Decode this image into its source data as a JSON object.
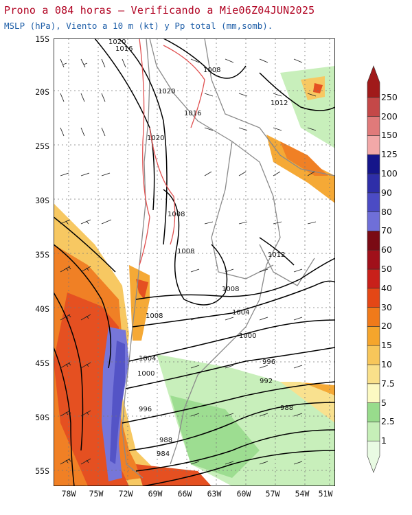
{
  "header": {
    "title": "Prono a 084 horas — Verificando a Mie06Z04JUN2025",
    "subtitle": "MSLP (hPa), Viento a 10 m (kt) y Pp total (mm,somb)."
  },
  "axes": {
    "lat_labels": [
      "15S",
      "20S",
      "25S",
      "30S",
      "35S",
      "40S",
      "45S",
      "50S",
      "55S"
    ],
    "lon_labels": [
      "78W",
      "75W",
      "72W",
      "69W",
      "66W",
      "63W",
      "60W",
      "57W",
      "54W",
      "51W"
    ]
  },
  "isobars": {
    "labels": [
      "1020",
      "1016",
      "1008",
      "1020",
      "1016",
      "1012",
      "1020",
      "1008",
      "1008",
      "1012",
      "1008",
      "1004",
      "1000",
      "996",
      "992",
      "988",
      "988",
      "984",
      "1008",
      "1004",
      "1000",
      "996"
    ]
  },
  "colorbar": {
    "levels": [
      "1",
      "2.5",
      "5",
      "7.5",
      "10",
      "15",
      "20",
      "30",
      "40",
      "50",
      "60",
      "70",
      "80",
      "90",
      "100",
      "125",
      "150",
      "200",
      "250"
    ],
    "colors": [
      "#e9fbe3",
      "#c6efb8",
      "#98dc8c",
      "#fcf9c2",
      "#f9e08a",
      "#f7c65a",
      "#f5a52c",
      "#f07a1a",
      "#e44716",
      "#c8201a",
      "#a0101a",
      "#7a0a14",
      "#6f6fd8",
      "#4b4bc4",
      "#2e2ea8",
      "#15158a",
      "#f2a8a8",
      "#e07a7a",
      "#c44848",
      "#a01a1a"
    ]
  }
}
